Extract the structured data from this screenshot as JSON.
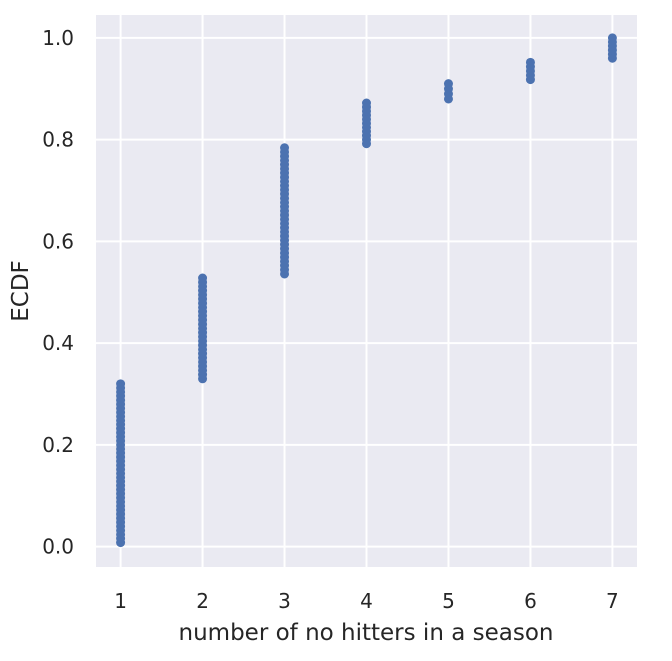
{
  "chart_data": {
    "type": "scatter",
    "title": "",
    "xlabel": "number of no hitters in a season",
    "ylabel": "ECDF",
    "xlim": [
      0.7,
      7.3
    ],
    "ylim": [
      -0.04,
      1.045
    ],
    "x_ticks": [
      1,
      2,
      3,
      4,
      5,
      6,
      7
    ],
    "y_ticks": [
      0.0,
      0.2,
      0.4,
      0.6,
      0.8,
      1.0
    ],
    "y_tick_labels": [
      "0.0",
      "0.2",
      "0.4",
      "0.6",
      "0.8",
      "1.0"
    ],
    "grid": true,
    "colors": {
      "background": "#eaeaf2",
      "grid": "#ffffff",
      "marker": "#4c72b0",
      "text": "#262626"
    },
    "series": [
      {
        "groups": [
          {
            "x": 1,
            "y_min": 0.008,
            "y_max": 0.32,
            "n": 40
          },
          {
            "x": 2,
            "y_min": 0.33,
            "y_max": 0.528,
            "n": 25
          },
          {
            "x": 3,
            "y_min": 0.536,
            "y_max": 0.784,
            "n": 31
          },
          {
            "x": 4,
            "y_min": 0.792,
            "y_max": 0.872,
            "n": 11
          },
          {
            "x": 5,
            "y_min": 0.88,
            "y_max": 0.91,
            "n": 4
          },
          {
            "x": 6,
            "y_min": 0.918,
            "y_max": 0.952,
            "n": 5
          },
          {
            "x": 7,
            "y_min": 0.96,
            "y_max": 1.0,
            "n": 6
          }
        ]
      }
    ]
  }
}
